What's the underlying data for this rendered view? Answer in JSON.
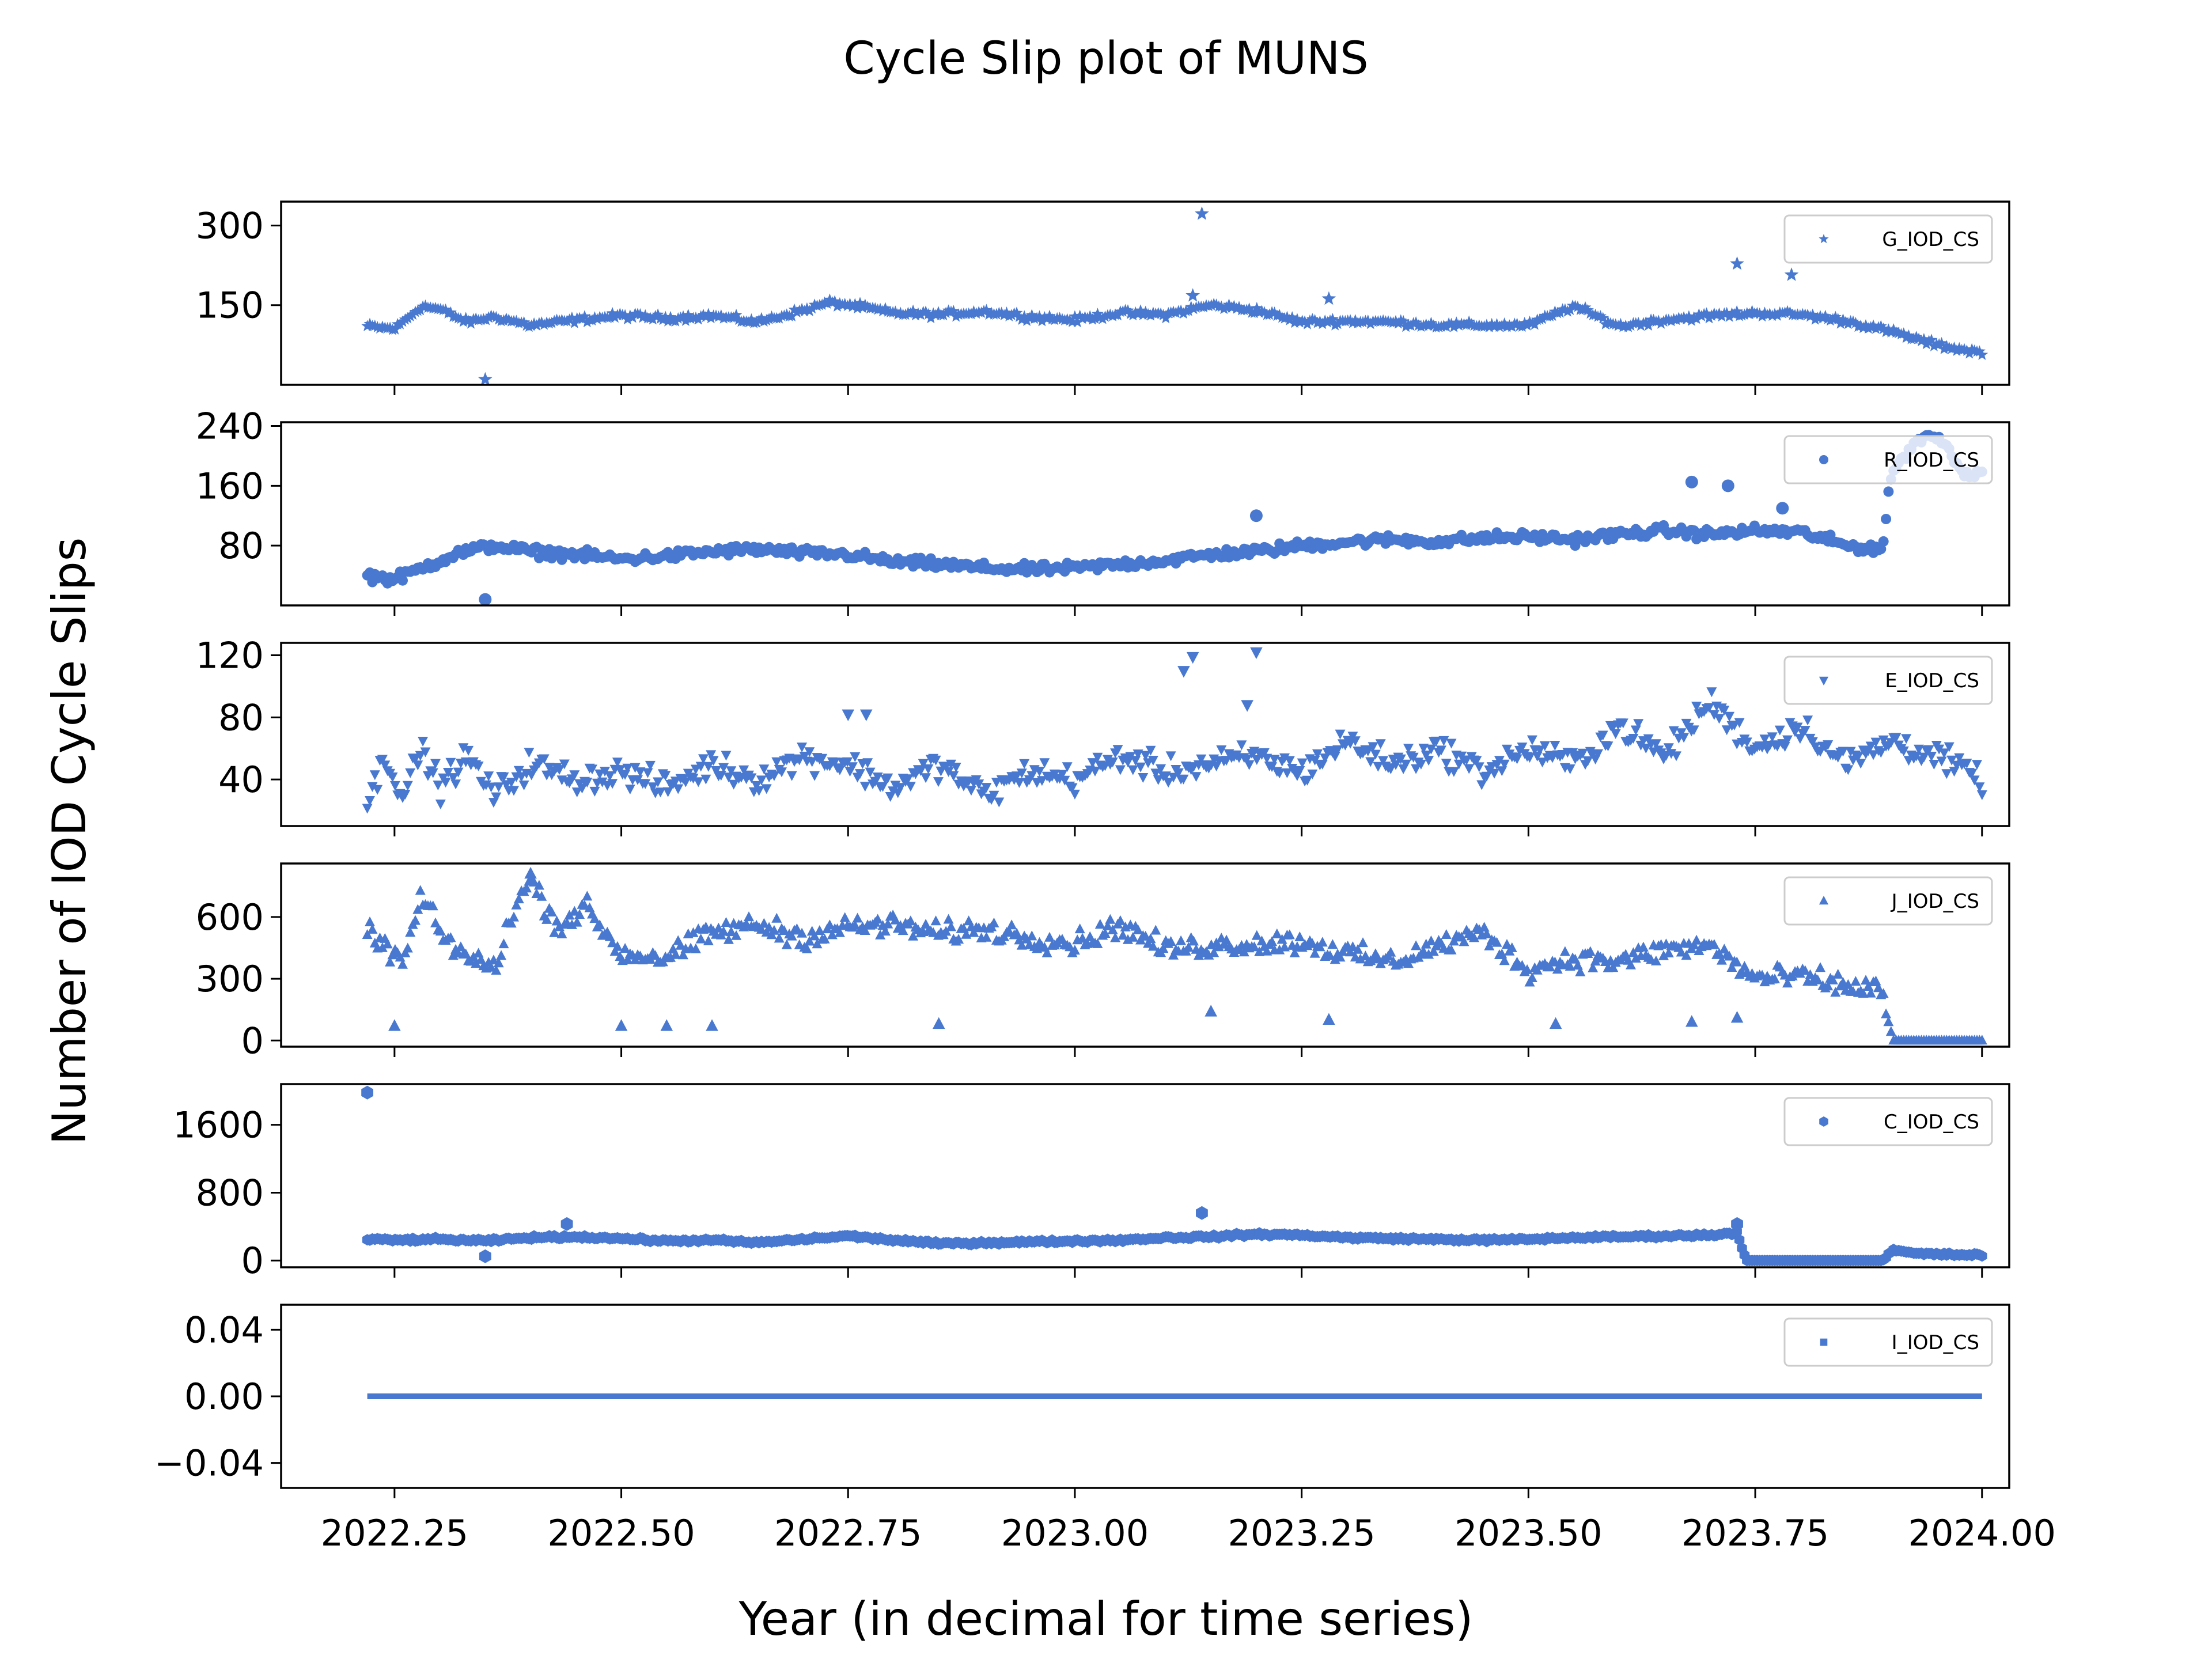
{
  "chart_data": {
    "type": "scatter",
    "title": "Cycle Slip plot of MUNS",
    "xlabel": "Year (in decimal for time series)",
    "ylabel": "Number of IOD Cycle Slips",
    "xlim": [
      2022.125,
      2024.03
    ],
    "x_ticks": [
      2022.25,
      2022.5,
      2022.75,
      2023.0,
      2023.25,
      2023.5,
      2023.75,
      2024.0
    ],
    "x_tick_labels": [
      "2022.25",
      "2022.50",
      "2022.75",
      "2023.00",
      "2023.25",
      "2023.50",
      "2023.75",
      "2024.00"
    ],
    "color": "#4878CF",
    "grid": false,
    "legend_position": "top-right",
    "panels": [
      {
        "series_name": "G_IOD_CS",
        "marker": "star",
        "ylim": [
          0,
          345
        ],
        "y_ticks": [
          150,
          300
        ],
        "y_tick_labels": [
          "150",
          "300"
        ],
        "outliers": [
          [
            2022.35,
            10
          ],
          [
            2023.14,
            322
          ],
          [
            2023.73,
            228
          ],
          [
            2023.79,
            207
          ],
          [
            2023.28,
            162
          ],
          [
            2023.13,
            168
          ]
        ],
        "points": [
          [
            2022.22,
            110
          ],
          [
            2022.25,
            105
          ],
          [
            2022.28,
            148
          ],
          [
            2022.3,
            142
          ],
          [
            2022.33,
            118
          ],
          [
            2022.36,
            128
          ],
          [
            2022.4,
            112
          ],
          [
            2022.45,
            122
          ],
          [
            2022.5,
            130
          ],
          [
            2022.55,
            125
          ],
          [
            2022.6,
            130
          ],
          [
            2022.65,
            118
          ],
          [
            2022.7,
            140
          ],
          [
            2022.73,
            155
          ],
          [
            2022.76,
            148
          ],
          [
            2022.8,
            135
          ],
          [
            2022.85,
            132
          ],
          [
            2022.9,
            138
          ],
          [
            2022.95,
            128
          ],
          [
            2023.0,
            122
          ],
          [
            2023.05,
            135
          ],
          [
            2023.1,
            132
          ],
          [
            2023.15,
            150
          ],
          [
            2023.2,
            140
          ],
          [
            2023.25,
            118
          ],
          [
            2023.3,
            120
          ],
          [
            2023.35,
            118
          ],
          [
            2023.4,
            112
          ],
          [
            2023.45,
            112
          ],
          [
            2023.5,
            112
          ],
          [
            2023.55,
            148
          ],
          [
            2023.6,
            110
          ],
          [
            2023.65,
            122
          ],
          [
            2023.7,
            130
          ],
          [
            2023.75,
            135
          ],
          [
            2023.8,
            132
          ],
          [
            2023.85,
            120
          ],
          [
            2023.9,
            100
          ],
          [
            2023.95,
            75
          ],
          [
            2024.0,
            60
          ]
        ]
      },
      {
        "series_name": "R_IOD_CS",
        "marker": "circle",
        "ylim": [
          0,
          245
        ],
        "y_ticks": [
          80,
          160,
          240
        ],
        "y_tick_labels": [
          "80",
          "160",
          "240"
        ],
        "outliers": [
          [
            2022.35,
            8
          ],
          [
            2023.2,
            120
          ],
          [
            2023.68,
            165
          ],
          [
            2023.72,
            160
          ],
          [
            2023.78,
            130
          ]
        ],
        "points": [
          [
            2022.22,
            40
          ],
          [
            2022.25,
            35
          ],
          [
            2022.28,
            50
          ],
          [
            2022.32,
            70
          ],
          [
            2022.36,
            80
          ],
          [
            2022.4,
            72
          ],
          [
            2022.45,
            68
          ],
          [
            2022.5,
            62
          ],
          [
            2022.55,
            66
          ],
          [
            2022.6,
            72
          ],
          [
            2022.65,
            75
          ],
          [
            2022.7,
            70
          ],
          [
            2022.75,
            68
          ],
          [
            2022.8,
            58
          ],
          [
            2022.85,
            55
          ],
          [
            2022.9,
            50
          ],
          [
            2022.95,
            48
          ],
          [
            2023.0,
            50
          ],
          [
            2023.05,
            55
          ],
          [
            2023.1,
            60
          ],
          [
            2023.15,
            68
          ],
          [
            2023.2,
            72
          ],
          [
            2023.25,
            80
          ],
          [
            2023.3,
            85
          ],
          [
            2023.35,
            88
          ],
          [
            2023.4,
            85
          ],
          [
            2023.45,
            90
          ],
          [
            2023.5,
            92
          ],
          [
            2023.55,
            88
          ],
          [
            2023.6,
            95
          ],
          [
            2023.65,
            100
          ],
          [
            2023.7,
            95
          ],
          [
            2023.75,
            100
          ],
          [
            2023.8,
            98
          ],
          [
            2023.85,
            80
          ],
          [
            2023.89,
            75
          ],
          [
            2023.9,
            175
          ],
          [
            2023.92,
            210
          ],
          [
            2023.94,
            230
          ],
          [
            2023.96,
            215
          ],
          [
            2023.98,
            175
          ],
          [
            2024.0,
            180
          ]
        ]
      },
      {
        "series_name": "E_IOD_CS",
        "marker": "triangle-down",
        "ylim": [
          10,
          128
        ],
        "y_ticks": [
          40,
          80,
          120
        ],
        "y_tick_labels": [
          "40",
          "80",
          "120"
        ],
        "outliers": [
          [
            2023.12,
            110
          ],
          [
            2023.13,
            119
          ],
          [
            2023.2,
            122
          ],
          [
            2023.19,
            88
          ],
          [
            2022.75,
            82
          ],
          [
            2022.77,
            82
          ]
        ],
        "points": [
          [
            2022.22,
            25
          ],
          [
            2022.24,
            55
          ],
          [
            2022.26,
            30
          ],
          [
            2022.28,
            60
          ],
          [
            2022.3,
            35
          ],
          [
            2022.33,
            55
          ],
          [
            2022.36,
            30
          ],
          [
            2022.4,
            50
          ],
          [
            2022.45,
            40
          ],
          [
            2022.5,
            45
          ],
          [
            2022.55,
            35
          ],
          [
            2022.6,
            50
          ],
          [
            2022.65,
            40
          ],
          [
            2022.7,
            55
          ],
          [
            2022.75,
            50
          ],
          [
            2022.8,
            35
          ],
          [
            2022.85,
            50
          ],
          [
            2022.9,
            30
          ],
          [
            2022.95,
            45
          ],
          [
            2023.0,
            40
          ],
          [
            2023.05,
            55
          ],
          [
            2023.1,
            45
          ],
          [
            2023.15,
            50
          ],
          [
            2023.2,
            55
          ],
          [
            2023.25,
            45
          ],
          [
            2023.3,
            65
          ],
          [
            2023.35,
            50
          ],
          [
            2023.4,
            60
          ],
          [
            2023.45,
            45
          ],
          [
            2023.5,
            60
          ],
          [
            2023.55,
            50
          ],
          [
            2023.6,
            75
          ],
          [
            2023.65,
            55
          ],
          [
            2023.7,
            90
          ],
          [
            2023.75,
            60
          ],
          [
            2023.8,
            75
          ],
          [
            2023.85,
            50
          ],
          [
            2023.9,
            65
          ],
          [
            2023.95,
            55
          ],
          [
            2024.0,
            40
          ]
        ]
      },
      {
        "series_name": "J_IOD_CS",
        "marker": "triangle-up",
        "ylim": [
          -30,
          860
        ],
        "y_ticks": [
          0,
          300,
          600
        ],
        "y_tick_labels": [
          "0",
          "300",
          "600"
        ],
        "outliers": [
          [
            2022.25,
            70
          ],
          [
            2022.4,
            810
          ],
          [
            2022.5,
            70
          ],
          [
            2022.55,
            70
          ],
          [
            2022.6,
            70
          ],
          [
            2022.85,
            80
          ],
          [
            2023.15,
            140
          ],
          [
            2023.28,
            100
          ],
          [
            2023.53,
            80
          ],
          [
            2023.68,
            90
          ],
          [
            2023.73,
            110
          ]
        ],
        "points": [
          [
            2022.22,
            520
          ],
          [
            2022.24,
            450
          ],
          [
            2022.26,
            380
          ],
          [
            2022.28,
            700
          ],
          [
            2022.3,
            520
          ],
          [
            2022.33,
            400
          ],
          [
            2022.36,
            350
          ],
          [
            2022.38,
            620
          ],
          [
            2022.4,
            780
          ],
          [
            2022.43,
            550
          ],
          [
            2022.46,
            650
          ],
          [
            2022.5,
            420
          ],
          [
            2022.55,
            400
          ],
          [
            2022.6,
            520
          ],
          [
            2022.65,
            560
          ],
          [
            2022.7,
            500
          ],
          [
            2022.75,
            550
          ],
          [
            2022.8,
            560
          ],
          [
            2022.85,
            520
          ],
          [
            2022.9,
            540
          ],
          [
            2022.95,
            500
          ],
          [
            2023.0,
            470
          ],
          [
            2023.05,
            560
          ],
          [
            2023.1,
            440
          ],
          [
            2023.15,
            460
          ],
          [
            2023.2,
            470
          ],
          [
            2023.25,
            480
          ],
          [
            2023.3,
            420
          ],
          [
            2023.35,
            380
          ],
          [
            2023.4,
            460
          ],
          [
            2023.45,
            520
          ],
          [
            2023.5,
            340
          ],
          [
            2023.55,
            400
          ],
          [
            2023.6,
            380
          ],
          [
            2023.65,
            440
          ],
          [
            2023.7,
            460
          ],
          [
            2023.75,
            300
          ],
          [
            2023.8,
            310
          ],
          [
            2023.85,
            260
          ],
          [
            2023.89,
            250
          ],
          [
            2023.9,
            0
          ],
          [
            2023.92,
            0
          ],
          [
            2023.94,
            0
          ],
          [
            2023.96,
            0
          ],
          [
            2023.98,
            0
          ],
          [
            2024.0,
            0
          ]
        ]
      },
      {
        "series_name": "C_IOD_CS",
        "marker": "hexagon",
        "ylim": [
          -80,
          2080
        ],
        "y_ticks": [
          0,
          800,
          1600
        ],
        "y_tick_labels": [
          "0",
          "800",
          "1600"
        ],
        "outliers": [
          [
            2022.22,
            1980
          ],
          [
            2022.35,
            50
          ],
          [
            2022.44,
            430
          ],
          [
            2023.14,
            560
          ],
          [
            2023.73,
            430
          ]
        ],
        "points": [
          [
            2022.22,
            250
          ],
          [
            2022.25,
            240
          ],
          [
            2022.3,
            250
          ],
          [
            2022.35,
            230
          ],
          [
            2022.4,
            270
          ],
          [
            2022.45,
            280
          ],
          [
            2022.5,
            260
          ],
          [
            2022.55,
            230
          ],
          [
            2022.6,
            240
          ],
          [
            2022.65,
            210
          ],
          [
            2022.7,
            250
          ],
          [
            2022.75,
            290
          ],
          [
            2022.8,
            240
          ],
          [
            2022.85,
            200
          ],
          [
            2022.9,
            210
          ],
          [
            2022.95,
            220
          ],
          [
            2023.0,
            230
          ],
          [
            2023.05,
            240
          ],
          [
            2023.1,
            270
          ],
          [
            2023.15,
            280
          ],
          [
            2023.2,
            310
          ],
          [
            2023.25,
            300
          ],
          [
            2023.3,
            270
          ],
          [
            2023.35,
            260
          ],
          [
            2023.4,
            250
          ],
          [
            2023.45,
            240
          ],
          [
            2023.5,
            250
          ],
          [
            2023.55,
            270
          ],
          [
            2023.6,
            280
          ],
          [
            2023.65,
            290
          ],
          [
            2023.7,
            300
          ],
          [
            2023.73,
            330
          ],
          [
            2023.74,
            0
          ],
          [
            2023.78,
            0
          ],
          [
            2023.82,
            0
          ],
          [
            2023.86,
            0
          ],
          [
            2023.89,
            0
          ],
          [
            2023.9,
            120
          ],
          [
            2023.93,
            80
          ],
          [
            2023.96,
            70
          ],
          [
            2024.0,
            65
          ]
        ]
      },
      {
        "series_name": "I_IOD_CS",
        "marker": "square",
        "ylim": [
          -0.055,
          0.055
        ],
        "y_ticks": [
          -0.04,
          0.0,
          0.04
        ],
        "y_tick_labels": [
          "−0.04",
          "0.00",
          "0.04"
        ],
        "outliers": [],
        "points": [
          [
            2022.22,
            0
          ],
          [
            2024.0,
            0
          ]
        ]
      }
    ]
  }
}
